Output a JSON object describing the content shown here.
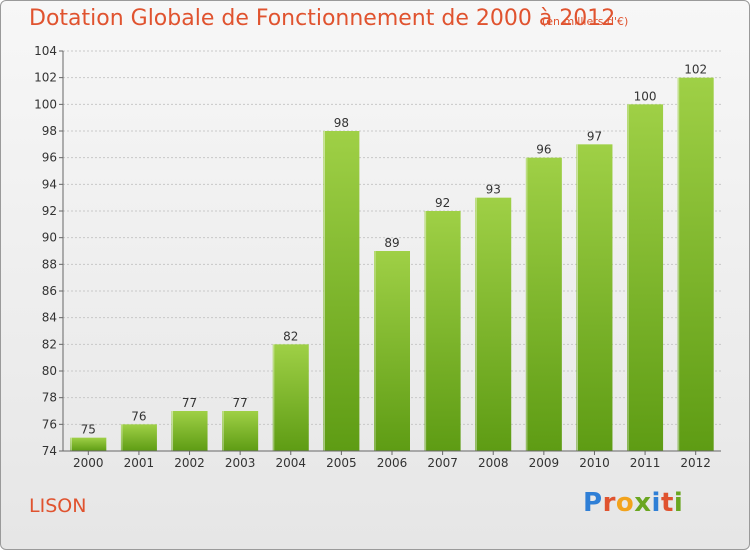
{
  "header": {
    "title": "Dotation Globale de Fonctionnement de 2000 à 2012",
    "unit": "(en milliers d'€)"
  },
  "footer": {
    "commune": "LISON",
    "logo": "Proxiti"
  },
  "colors": {
    "title": "#e0532f",
    "bar_top": "#9fd046",
    "bar_bottom": "#5e9c14",
    "grid": "#c8c8c8",
    "logo_letters": [
      "#2f7fd6",
      "#e0532f",
      "#f2a31c",
      "#6aa620",
      "#2f7fd6",
      "#e0532f",
      "#6aa620"
    ]
  },
  "chart_data": {
    "type": "bar",
    "title": "Dotation Globale de Fonctionnement de 2000 à 2012",
    "xlabel": "",
    "ylabel": "",
    "categories": [
      "2000",
      "2001",
      "2002",
      "2003",
      "2004",
      "2005",
      "2006",
      "2007",
      "2008",
      "2009",
      "2010",
      "2011",
      "2012"
    ],
    "values": [
      75,
      76,
      77,
      77,
      82,
      98,
      89,
      92,
      93,
      96,
      97,
      100,
      102
    ],
    "ylim": [
      74,
      104
    ],
    "yticks": [
      74,
      76,
      78,
      80,
      82,
      84,
      86,
      88,
      90,
      92,
      94,
      96,
      98,
      100,
      102,
      104
    ],
    "grid": true,
    "data_labels": true
  }
}
